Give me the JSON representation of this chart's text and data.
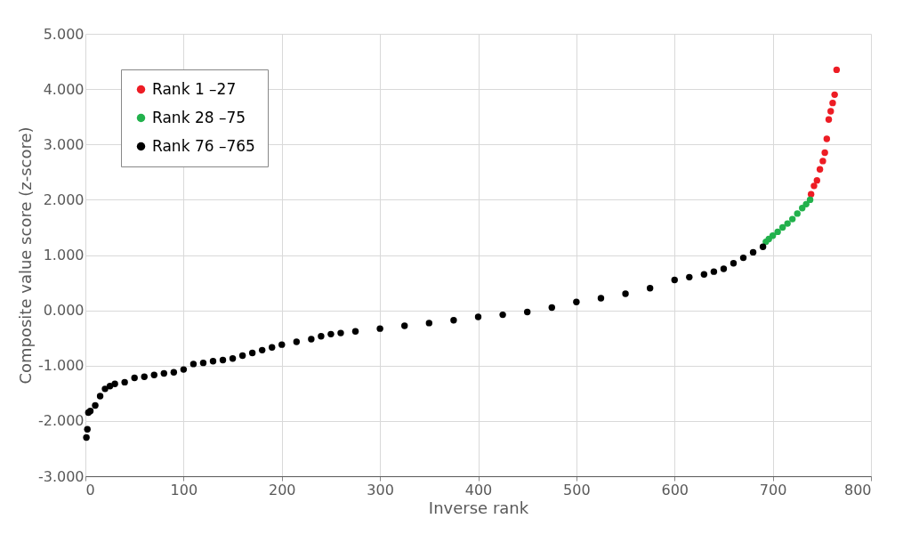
{
  "chart_data": {
    "type": "scatter",
    "xlabel": "Inverse rank",
    "ylabel": "Composite value score (z-score)",
    "xlim": [
      0,
      800
    ],
    "xticks": [
      0,
      100,
      200,
      300,
      400,
      500,
      600,
      700,
      800
    ],
    "ylim": [
      -3,
      5
    ],
    "yticks": [
      {
        "value": -3,
        "label": "-3.000"
      },
      {
        "value": -2,
        "label": "-2.000"
      },
      {
        "value": -1,
        "label": "-1.000"
      },
      {
        "value": 0,
        "label": "0.000"
      },
      {
        "value": 1,
        "label": "1.000"
      },
      {
        "value": 2,
        "label": "2.000"
      },
      {
        "value": 3,
        "label": "3.000"
      },
      {
        "value": 4,
        "label": "4.000"
      },
      {
        "value": 5,
        "label": "5.000"
      }
    ],
    "grid": true,
    "legend": "top left",
    "marker": "circle",
    "series": [
      {
        "name": "Rank 1 –27",
        "color": "#ed1c24",
        "x": [
          739,
          742,
          745,
          748,
          751,
          753,
          755,
          757,
          759,
          761,
          763,
          765
        ],
        "values": [
          2.1,
          2.25,
          2.35,
          2.55,
          2.7,
          2.85,
          3.1,
          3.45,
          3.6,
          3.75,
          3.9,
          4.35
        ]
      },
      {
        "name": "Rank 28 –75",
        "color": "#22b14c",
        "x": [
          693,
          696,
          700,
          705,
          710,
          715,
          720,
          725,
          730,
          734,
          738
        ],
        "values": [
          1.24,
          1.29,
          1.35,
          1.42,
          1.5,
          1.57,
          1.65,
          1.75,
          1.85,
          1.92,
          2.0
        ]
      },
      {
        "name": "Rank 76 –765",
        "color": "#000000",
        "x": [
          1,
          2,
          3,
          5,
          10,
          15,
          20,
          25,
          30,
          40,
          50,
          60,
          70,
          80,
          90,
          100,
          110,
          120,
          130,
          140,
          150,
          160,
          170,
          180,
          190,
          200,
          215,
          230,
          240,
          250,
          260,
          275,
          300,
          325,
          350,
          375,
          400,
          425,
          450,
          475,
          500,
          525,
          550,
          575,
          600,
          615,
          630,
          640,
          650,
          660,
          670,
          680,
          690
        ],
        "values": [
          -2.3,
          -2.15,
          -1.85,
          -1.82,
          -1.72,
          -1.55,
          -1.42,
          -1.37,
          -1.33,
          -1.3,
          -1.22,
          -1.2,
          -1.17,
          -1.14,
          -1.12,
          -1.07,
          -0.97,
          -0.95,
          -0.92,
          -0.9,
          -0.87,
          -0.82,
          -0.77,
          -0.72,
          -0.67,
          -0.62,
          -0.57,
          -0.52,
          -0.47,
          -0.43,
          -0.41,
          -0.38,
          -0.33,
          -0.28,
          -0.23,
          -0.18,
          -0.12,
          -0.08,
          -0.03,
          0.05,
          0.15,
          0.22,
          0.3,
          0.4,
          0.55,
          0.6,
          0.65,
          0.7,
          0.75,
          0.85,
          0.95,
          1.05,
          1.15
        ]
      }
    ]
  }
}
